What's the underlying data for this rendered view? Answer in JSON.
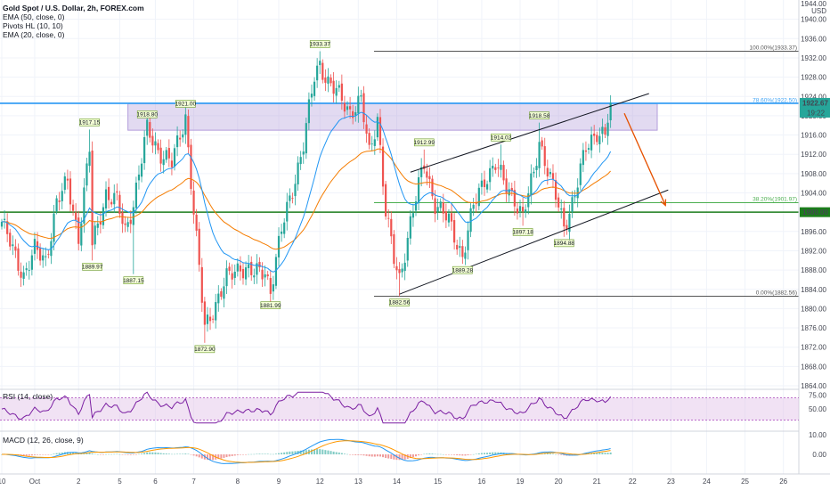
{
  "header": {
    "title": "Gold Spot / U.S. Dollar, 2h, FOREX.com",
    "indicators": [
      "EMA (50, close, 0)",
      "Pivots HL (10, 10)",
      "EMA (20, close, 0)"
    ],
    "currency": "USD",
    "top_price": "1944.00"
  },
  "panes": {
    "rsi_label": "RSI (14, close)",
    "macd_label": "MACD (12, 26, close, 9)"
  },
  "colors": {
    "bull": "#26a69a",
    "bear": "#ef5350",
    "ema20": "#2196f3",
    "ema50": "#f57c00",
    "zone": "#b39ddb",
    "h_line": "#1b7d1b",
    "rsi": "#7b1fa2",
    "resist_line": "#42a5f5",
    "forecast": "#e65100"
  },
  "chart_data": {
    "type": "candlestick",
    "symbol": "XAUUSD",
    "timeframe": "2h",
    "y_axis": {
      "min": 1864,
      "max": 1944,
      "ticks": [
        "1940.00",
        "1936.00",
        "1932.00",
        "1928.00",
        "1924.00",
        "1920.00",
        "1916.00",
        "1912.00",
        "1908.00",
        "1904.00",
        "1900.00",
        "1896.00",
        "1892.00",
        "1888.00",
        "1884.00",
        "1880.00",
        "1876.00",
        "1872.00",
        "1868.00",
        "1864.00"
      ]
    },
    "x_axis": {
      "labels": [
        "10",
        "Oct",
        "2",
        "5",
        "6",
        "7",
        "8",
        "9",
        "12",
        "13",
        "14",
        "15",
        "16",
        "19",
        "20",
        "21",
        "22",
        "23",
        "24",
        "25",
        "26"
      ],
      "label_index": [
        0,
        12,
        28,
        43,
        56,
        70,
        86,
        101,
        116,
        130,
        144,
        159,
        175,
        189,
        203,
        217,
        230,
        244,
        257,
        271,
        285
      ]
    },
    "last_index": 222,
    "price_markers": [
      {
        "label": "1922.67",
        "sub": "19:22",
        "price": 1922.67,
        "color": "#26a69a"
      },
      {
        "label": "1900.00",
        "price": 1900.0,
        "color": "#1b7d1b"
      }
    ],
    "fib_levels": [
      {
        "label": "100.00%(1933.37)",
        "price": 1933.37,
        "color": "#555555"
      },
      {
        "label": "78.60%(1922.50)",
        "price": 1922.5,
        "color": "#42a5f5"
      },
      {
        "label": "38.20%(1901.97)",
        "price": 1901.97,
        "color": "#4caf50"
      },
      {
        "label": "0.00%(1882.56)",
        "price": 1882.56,
        "color": "#555555"
      }
    ],
    "supply_zone": {
      "top": 1922.5,
      "bottom": 1917.0,
      "from_index": 46
    },
    "horizontal_line": 1900.0,
    "channel": {
      "upper": [
        {
          "i": 149,
          "p": 1908.3
        },
        {
          "i": 236,
          "p": 1924.6
        }
      ],
      "lower": [
        {
          "i": 145,
          "p": 1883.0
        },
        {
          "i": 243,
          "p": 1904.6
        }
      ]
    },
    "forecast_arrow": [
      {
        "i": 227,
        "p": 1920.5
      },
      {
        "i": 242,
        "p": 1901.4
      }
    ],
    "pivots": [
      {
        "label": "1917.15",
        "i": 32,
        "p": 1917.15,
        "pos": "high"
      },
      {
        "label": "1918.80",
        "i": 53,
        "p": 1918.8,
        "pos": "high"
      },
      {
        "label": "1921.00",
        "i": 67,
        "p": 1921.0,
        "pos": "high"
      },
      {
        "label": "1933.37",
        "i": 116,
        "p": 1933.37,
        "pos": "high"
      },
      {
        "label": "1912.99",
        "i": 154,
        "p": 1912.99,
        "pos": "high"
      },
      {
        "label": "1914.02",
        "i": 182,
        "p": 1914.02,
        "pos": "high"
      },
      {
        "label": "1918.58",
        "i": 196,
        "p": 1918.58,
        "pos": "high"
      },
      {
        "label": "1889.97",
        "i": 33,
        "p": 1889.97,
        "pos": "low"
      },
      {
        "label": "1887.15",
        "i": 48,
        "p": 1887.15,
        "pos": "low"
      },
      {
        "label": "1872.90",
        "i": 74,
        "p": 1872.9,
        "pos": "low"
      },
      {
        "label": "1881.99",
        "i": 98,
        "p": 1881.99,
        "pos": "low"
      },
      {
        "label": "1882.56",
        "i": 145,
        "p": 1882.56,
        "pos": "low"
      },
      {
        "label": "1889.28",
        "i": 168,
        "p": 1889.28,
        "pos": "low"
      },
      {
        "label": "1897.18",
        "i": 190,
        "p": 1897.18,
        "pos": "low"
      },
      {
        "label": "1894.88",
        "i": 205,
        "p": 1894.88,
        "pos": "low"
      }
    ],
    "anchors": [
      [
        0,
        1898
      ],
      [
        4,
        1892
      ],
      [
        8,
        1887
      ],
      [
        12,
        1892
      ],
      [
        16,
        1890
      ],
      [
        20,
        1902
      ],
      [
        24,
        1906
      ],
      [
        28,
        1895
      ],
      [
        32,
        1913
      ],
      [
        33,
        1893
      ],
      [
        38,
        1904
      ],
      [
        42,
        1902
      ],
      [
        45,
        1896
      ],
      [
        48,
        1902
      ],
      [
        53,
        1917
      ],
      [
        57,
        1913
      ],
      [
        62,
        1910
      ],
      [
        67,
        1920
      ],
      [
        70,
        1900
      ],
      [
        74,
        1876
      ],
      [
        77,
        1880
      ],
      [
        82,
        1886
      ],
      [
        87,
        1889
      ],
      [
        92,
        1887
      ],
      [
        96,
        1888
      ],
      [
        98,
        1884
      ],
      [
        102,
        1896
      ],
      [
        106,
        1905
      ],
      [
        110,
        1914
      ],
      [
        114,
        1928
      ],
      [
        116,
        1931
      ],
      [
        119,
        1927
      ],
      [
        123,
        1924
      ],
      [
        127,
        1921
      ],
      [
        131,
        1923
      ],
      [
        134,
        1912
      ],
      [
        137,
        1920
      ],
      [
        140,
        1900
      ],
      [
        143,
        1890
      ],
      [
        145,
        1886
      ],
      [
        149,
        1898
      ],
      [
        154,
        1910
      ],
      [
        158,
        1902
      ],
      [
        163,
        1898
      ],
      [
        168,
        1891
      ],
      [
        172,
        1901
      ],
      [
        176,
        1907
      ],
      [
        180,
        1910
      ],
      [
        183,
        1906
      ],
      [
        187,
        1903
      ],
      [
        190,
        1899
      ],
      [
        194,
        1908
      ],
      [
        196,
        1915
      ],
      [
        200,
        1907
      ],
      [
        205,
        1897
      ],
      [
        209,
        1904
      ],
      [
        213,
        1913
      ],
      [
        217,
        1917
      ],
      [
        220,
        1916
      ],
      [
        222,
        1922.67
      ]
    ],
    "rsi": {
      "ticks": [
        "75.00",
        "50.00"
      ],
      "band": [
        30,
        70
      ],
      "last": 72
    },
    "macd": {
      "ticks": [
        "10.00",
        "0.00"
      ]
    }
  }
}
